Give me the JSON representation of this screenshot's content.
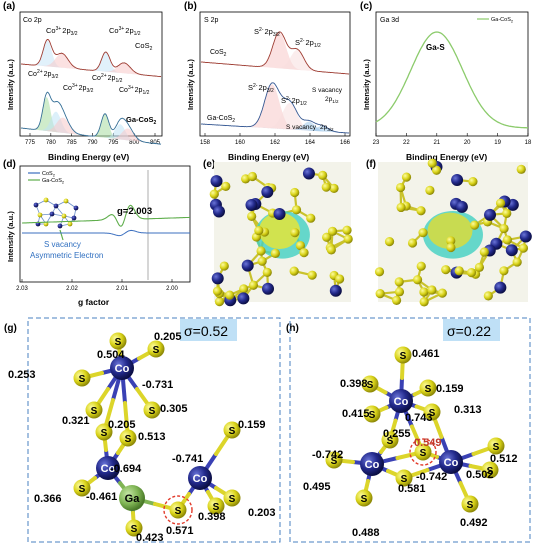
{
  "panels": {
    "a": {
      "letter": "(a)",
      "corner": "Co 2p",
      "xlabel": "Binding Energy (eV)",
      "ylabel": "Intensity (a.u.)",
      "xticks": [
        "775",
        "780",
        "785",
        "790",
        "795",
        "800",
        "805"
      ],
      "annotations": {
        "co3_32_top": "Co",
        "co3_32_top_sup": "3+",
        "co3_32_top_sub": "2p",
        "co3_32_top_sub2": "3/2",
        "co3_12_top": "Co",
        "co3_12_top_sup": "3+",
        "co3_12_top_sub": "2p",
        "co3_12_top_sub2": "1/2",
        "cos2": "CoS",
        "cos2_sub": "2",
        "co2_32": "Co",
        "co2_32_sup": "2+",
        "co2_32_sub": "2p",
        "co2_32_sub2": "3/2",
        "co2_12": "Co",
        "co2_12_sup": "2+",
        "co2_12_sub": "2p",
        "co2_12_sub2": "1/2",
        "co3_32_bot": "Co",
        "co3_32_bot_sup": "3+",
        "co3_32_bot_sub": "2p",
        "co3_32_bot_sub2": "3/2",
        "co3_12_bot": "Co",
        "co3_12_bot_sup": "3+",
        "co3_12_bot_sub": "2p",
        "co3_12_bot_sub2": "1/2",
        "gacos2": "Ga-CoS",
        "gacos2_sub": "2"
      }
    },
    "b": {
      "letter": "(b)",
      "corner": "S 2p",
      "xlabel": "Binding Energy (eV)",
      "ylabel": "Intensity (a.u.)",
      "xticks": [
        "158",
        "160",
        "162",
        "164",
        "166"
      ],
      "annotations": {
        "s32_top": "S",
        "s32_top_sup": "2-",
        "s32_top_sub": "2p",
        "s32_top_sub2": "3/2",
        "s12_top": "S",
        "s12_top_sup": "2-",
        "s12_top_sub": "2p",
        "s12_top_sub2": "1/2",
        "cos2": "CoS",
        "cos2_sub": "2",
        "s32_bot": "S",
        "s32_bot_sup": "2-",
        "s32_bot_sub": "2p",
        "s32_bot_sub2": "3/2",
        "s12_bot": "S",
        "s12_bot_sup": "2-",
        "s12_bot_sub": "2p",
        "s12_bot_sub2": "1/2",
        "svac12": "S vacancy",
        "svac12_sub": "2p",
        "svac12_sub2": "1/2",
        "svac32": "S vacancy",
        "svac32_sub": "2p",
        "svac32_sub2": "3/2",
        "gacos2": "Ga-CoS",
        "gacos2_sub": "2"
      }
    },
    "c": {
      "letter": "(c)",
      "corner": "Ga 3d",
      "xlabel": "Binding Energy (eV)",
      "ylabel": "Intensity (a.u.)",
      "xticks": [
        "23",
        "22",
        "21",
        "20",
        "19",
        "18"
      ],
      "legend": "Ga-CoS",
      "legend_sub": "2",
      "peak": "Ga-S"
    },
    "d": {
      "letter": "(d)",
      "xlabel": "g  factor",
      "ylabel": "Intensity (a.u.)",
      "xticks": [
        "2.03",
        "2.02",
        "2.01",
        "2.00"
      ],
      "legend1": "CoS",
      "legend1_sub": "2",
      "legend2": "Ga-CoS",
      "legend2_sub": "2",
      "gvalue": "g=2.003",
      "note1": "S vacancy",
      "note2": "Asymmetric Electron"
    },
    "e": {
      "letter": "(e)"
    },
    "f": {
      "letter": "(f)"
    },
    "g": {
      "letter": "(g)",
      "sigma": "σ=0.52",
      "atoms": {
        "co": "Co",
        "ga": "Ga",
        "s": "S"
      },
      "values": [
        "0.504",
        "0.205",
        "-0.731",
        "0.253",
        "0.305",
        "0.321",
        "0.205",
        "0.513",
        "-0.694",
        "-0.741",
        "0.159",
        "-0.461",
        "0.366",
        "0.398",
        "0.203",
        "0.423",
        "0.571"
      ]
    },
    "h": {
      "letter": "(h)",
      "sigma": "σ=0.22",
      "atoms": {
        "co": "Co",
        "s": "S"
      },
      "values": [
        "0.461",
        "0.398",
        "0.159",
        "0.415",
        "0.743",
        "0.313",
        "0.255",
        "0.549",
        "-0.742",
        "0.512",
        "0.495",
        "0.502",
        "0.581",
        "-0.742",
        "0.488",
        "0.492"
      ]
    }
  },
  "chart_data": [
    {
      "type": "line",
      "panel": "a",
      "title": "Co 2p",
      "xlabel": "Binding Energy (eV)",
      "ylabel": "Intensity (a.u.)",
      "xlim": [
        772,
        808
      ],
      "series": [
        {
          "name": "CoS2",
          "peaks_eV": [
            778.8,
            782.5,
            793.8,
            798.5
          ]
        },
        {
          "name": "Ga-CoS2",
          "peaks_eV": [
            778.6,
            781.0,
            782.5,
            793.6,
            797.5,
            799.0
          ]
        }
      ]
    },
    {
      "type": "line",
      "panel": "b",
      "title": "S 2p",
      "xlabel": "Binding Energy (eV)",
      "ylabel": "Intensity (a.u.)",
      "xlim": [
        157,
        167
      ],
      "series": [
        {
          "name": "CoS2",
          "peaks_eV": [
            162.3,
            163.5
          ]
        },
        {
          "name": "Ga-CoS2",
          "peaks_eV": [
            161.8,
            162.9,
            164.3,
            165.2
          ]
        }
      ]
    },
    {
      "type": "line",
      "panel": "c",
      "title": "Ga 3d",
      "xlabel": "Binding Energy (eV)",
      "ylabel": "Intensity (a.u.)",
      "xlim": [
        23,
        18
      ],
      "series": [
        {
          "name": "Ga-CoS2",
          "peaks_eV": [
            21.0
          ]
        }
      ]
    },
    {
      "type": "line",
      "panel": "d",
      "xlabel": "g factor",
      "ylabel": "Intensity (a.u.)",
      "xlim": [
        2.03,
        1.995
      ],
      "series": [
        {
          "name": "CoS2"
        },
        {
          "name": "Ga-CoS2"
        }
      ],
      "annotation_g": 2.003
    }
  ]
}
